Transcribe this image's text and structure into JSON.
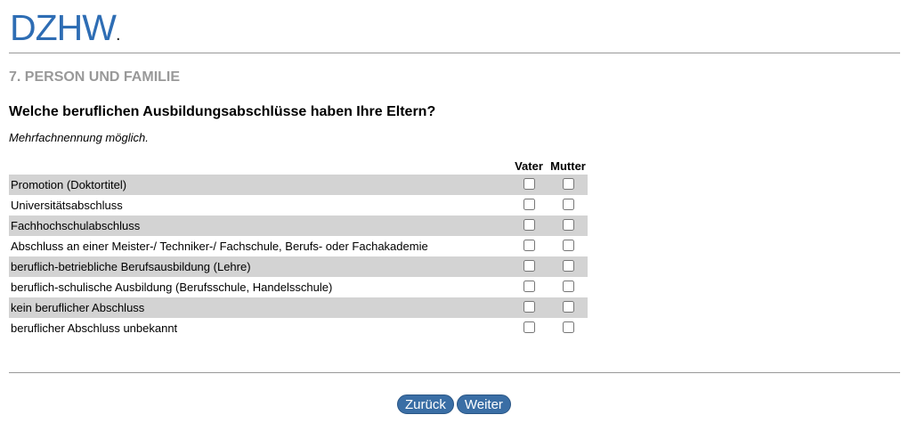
{
  "logo": {
    "text": "DZHW",
    "dot": "."
  },
  "section": "7. PERSON UND FAMILIE",
  "question": "Welche beruflichen Ausbildungsabschlüsse haben Ihre Eltern?",
  "hint": "Mehrfachnennung möglich.",
  "columns": [
    "Vater",
    "Mutter"
  ],
  "rows": [
    {
      "label": "Promotion (Doktortitel)",
      "vater": false,
      "mutter": false
    },
    {
      "label": "Universitätsabschluss",
      "vater": false,
      "mutter": false
    },
    {
      "label": "Fachhochschulabschluss",
      "vater": false,
      "mutter": false
    },
    {
      "label": "Abschluss an einer Meister-/ Techniker-/ Fachschule, Berufs- oder Fachakademie",
      "vater": false,
      "mutter": false
    },
    {
      "label": "beruflich-betriebliche Berufsausbildung (Lehre)",
      "vater": false,
      "mutter": false
    },
    {
      "label": "beruflich-schulische Ausbildung (Berufsschule, Handelsschule)",
      "vater": false,
      "mutter": false
    },
    {
      "label": "kein beruflicher Abschluss",
      "vater": false,
      "mutter": false
    },
    {
      "label": "beruflicher Abschluss unbekannt",
      "vater": false,
      "mutter": false
    }
  ],
  "buttons": {
    "back": "Zurück",
    "next": "Weiter"
  },
  "colors": {
    "brand": "#2e6db4",
    "button": "#3a6ea5",
    "row_alt": "#d3d3d3"
  }
}
